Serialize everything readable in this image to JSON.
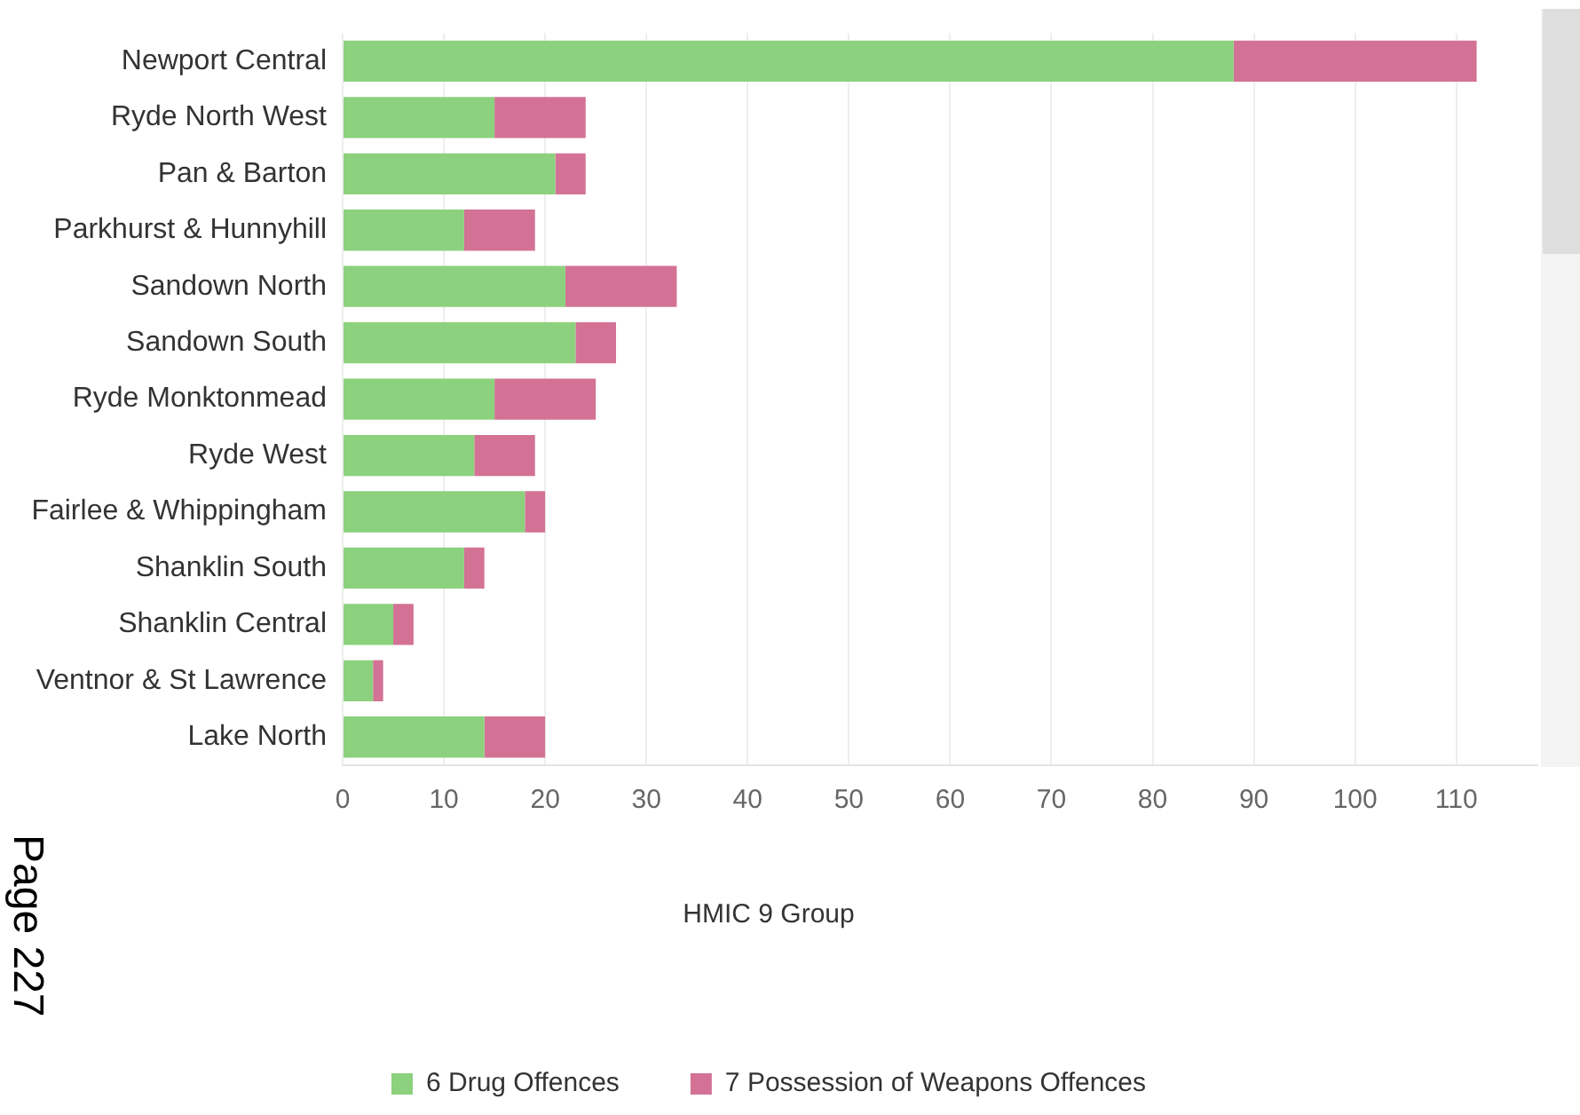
{
  "chart_data": {
    "type": "bar",
    "orientation": "horizontal",
    "stacked": true,
    "categories": [
      "Newport Central",
      "Ryde North West",
      "Pan & Barton",
      "Parkhurst & Hunnyhill",
      "Sandown North",
      "Sandown South",
      "Ryde Monktonmead",
      "Ryde West",
      "Fairlee & Whippingham",
      "Shanklin South",
      "Shanklin Central",
      "Ventnor & St Lawrence",
      "Lake North"
    ],
    "series": [
      {
        "name": "6 Drug Offences",
        "color": "#8cd17d",
        "values": [
          88,
          15,
          21,
          12,
          22,
          23,
          15,
          13,
          18,
          12,
          5,
          3,
          14
        ]
      },
      {
        "name": "7 Possession of Weapons Offences",
        "color": "#d37295",
        "values": [
          24,
          9,
          3,
          7,
          11,
          4,
          10,
          6,
          2,
          2,
          2,
          1,
          6
        ]
      }
    ],
    "xlim": [
      0,
      118
    ],
    "xticks": [
      0,
      10,
      20,
      30,
      40,
      50,
      60,
      70,
      80,
      90,
      100,
      110
    ],
    "grid": "x",
    "legend": "bottom",
    "legend_title": "HMIC 9 Group",
    "annotations": [
      "Page 227"
    ]
  }
}
